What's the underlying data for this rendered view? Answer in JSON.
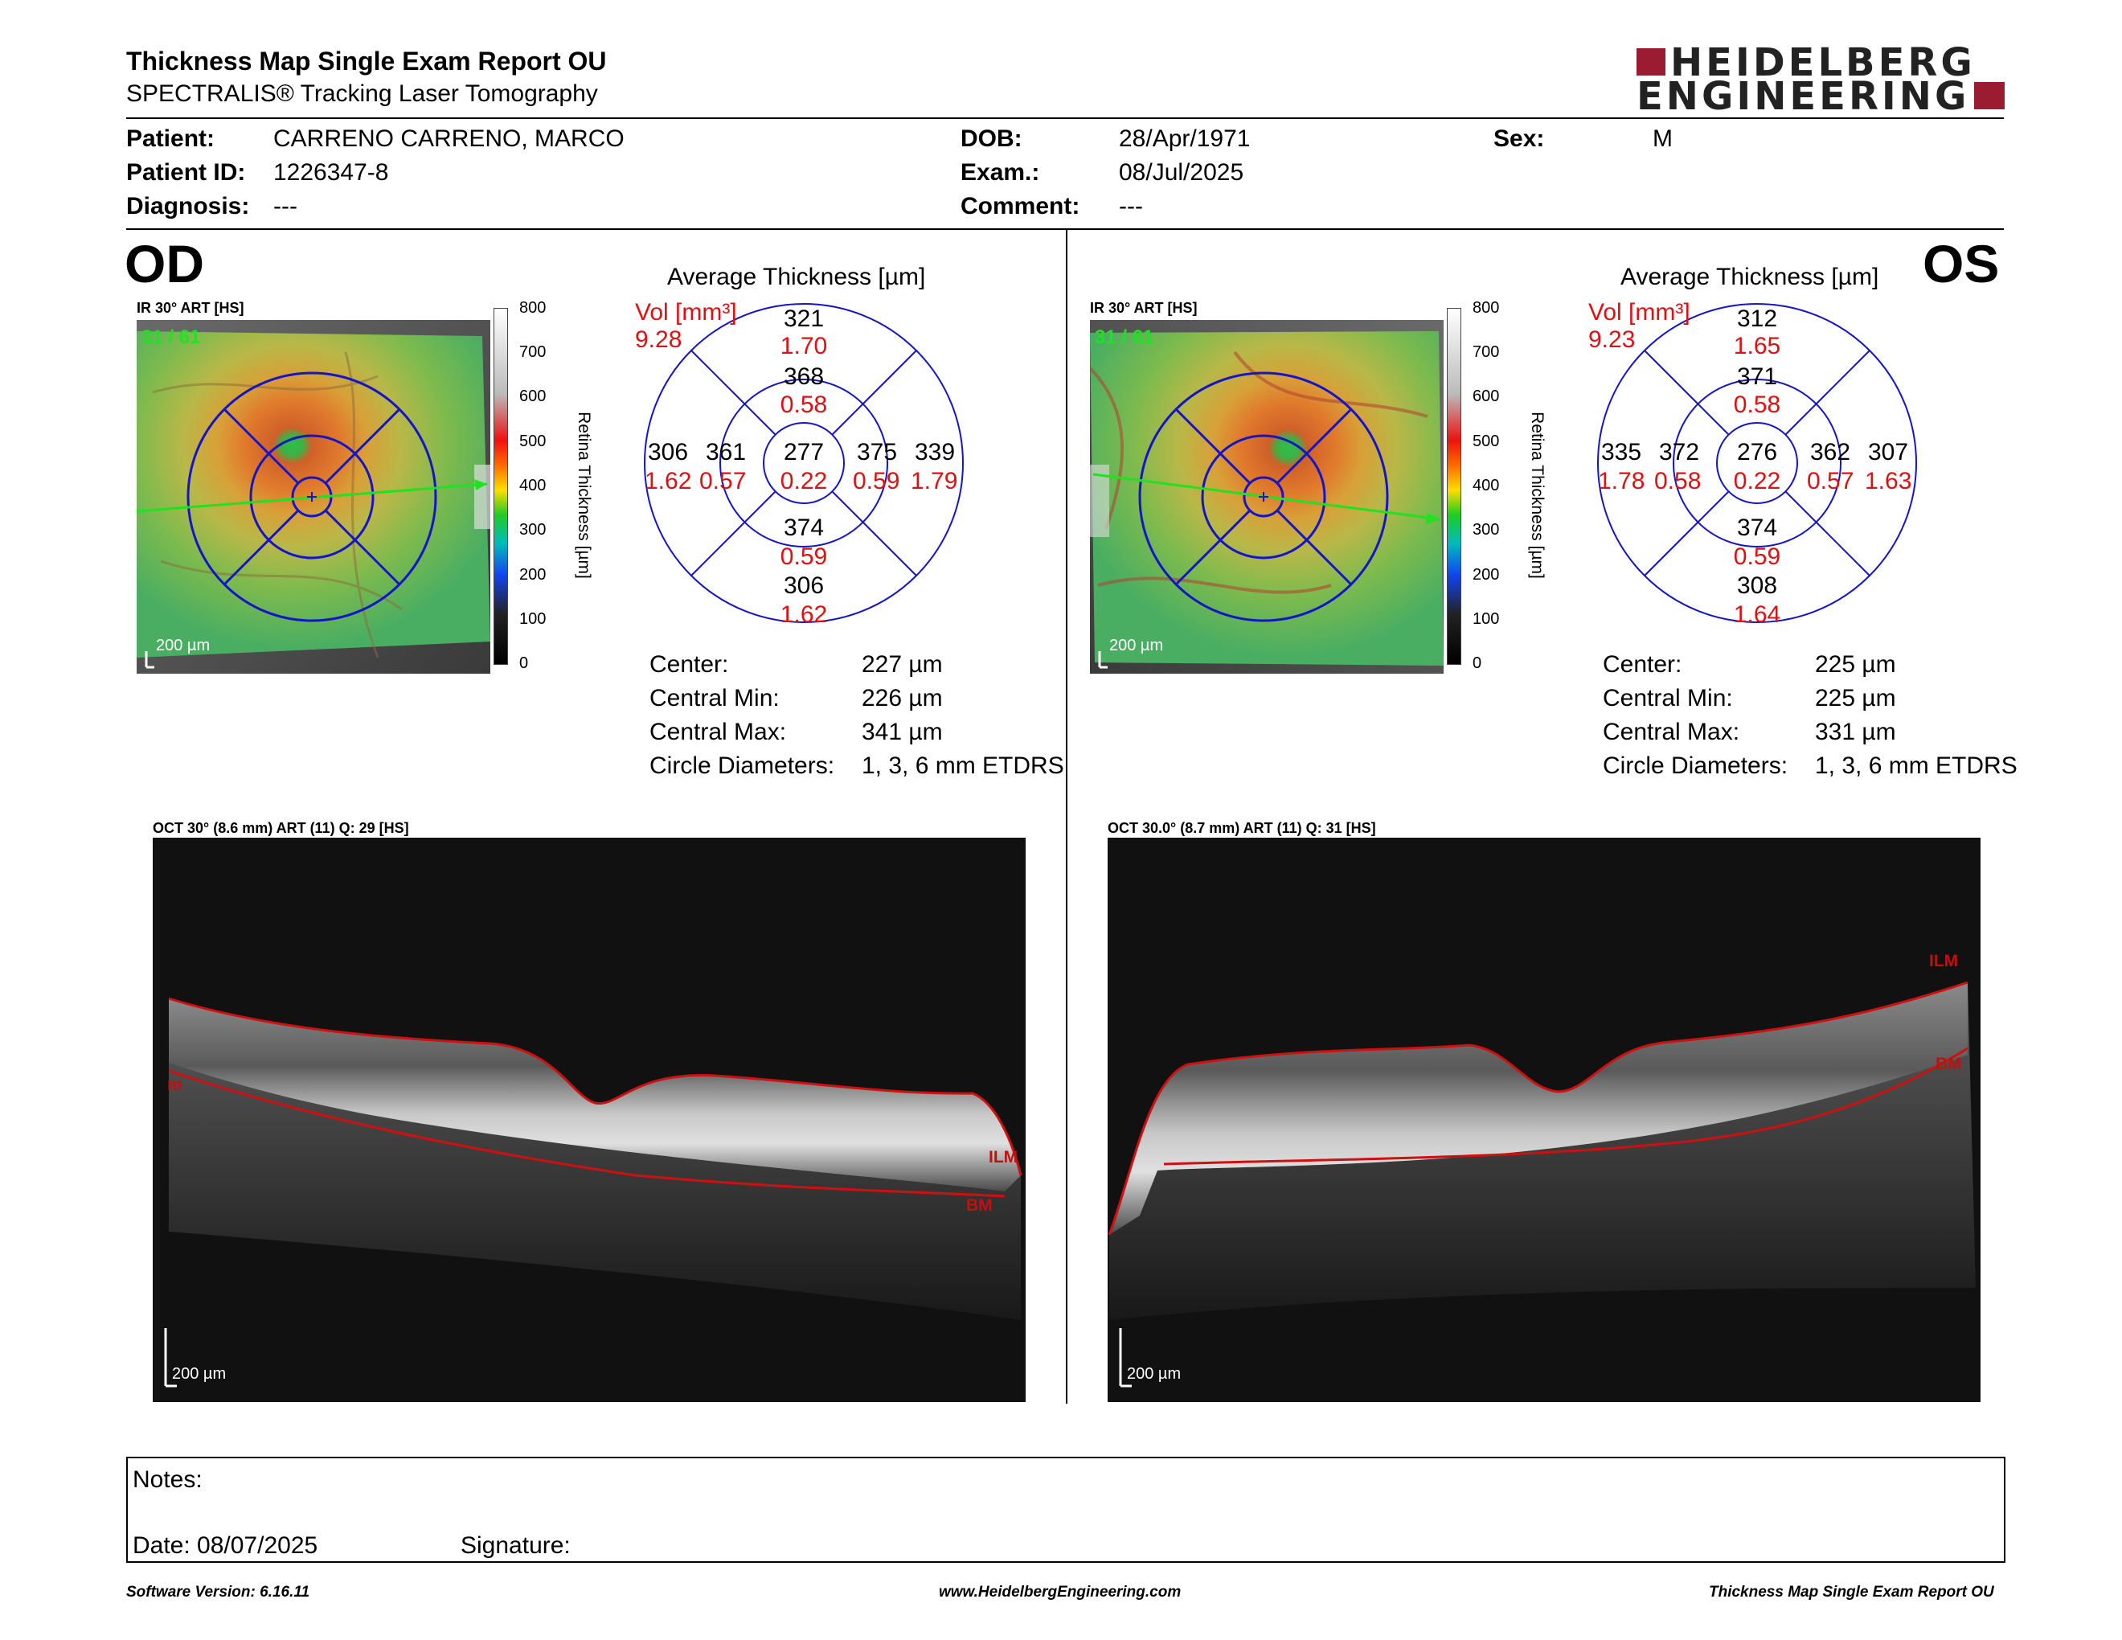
{
  "header": {
    "title": "Thickness Map Single Exam Report OU",
    "subtitle": "SPECTRALIS® Tracking Laser Tomography",
    "logo_line1": "HEIDELBERG",
    "logo_line2": "ENGINEERING"
  },
  "patient": {
    "patient_label": "Patient:",
    "patient_value": "CARRENO CARRENO, MARCO",
    "id_label": "Patient ID:",
    "id_value": "1226347-8",
    "diagnosis_label": "Diagnosis:",
    "diagnosis_value": "---",
    "dob_label": "DOB:",
    "dob_value": "28/Apr/1971",
    "exam_label": "Exam.:",
    "exam_value": "08/Jul/2025",
    "comment_label": "Comment:",
    "comment_value": "---",
    "sex_label": "Sex:",
    "sex_value": "M"
  },
  "colorbar": {
    "ticks": [
      "800",
      "700",
      "600",
      "500",
      "400",
      "300",
      "200",
      "100",
      "0"
    ],
    "label": "Retina Thickness [µm]"
  },
  "od": {
    "eye": "OD",
    "ir_label": "IR 30° ART [HS]",
    "frame": "31 / 61",
    "scale": "200 µm",
    "avg_title": "Average Thickness [µm]",
    "vol_label": "Vol [mm³]",
    "vol_value": "9.28",
    "sectors": {
      "outer_top": {
        "t": "321",
        "v": "1.70"
      },
      "inner_top": {
        "t": "368",
        "v": "0.58"
      },
      "outer_left": {
        "t": "306",
        "v": "1.62"
      },
      "inner_left": {
        "t": "361",
        "v": "0.57"
      },
      "center": {
        "t": "277",
        "v": "0.22"
      },
      "inner_right": {
        "t": "375",
        "v": "0.59"
      },
      "outer_right": {
        "t": "339",
        "v": "1.79"
      },
      "inner_bottom": {
        "t": "374",
        "v": "0.59"
      },
      "outer_bottom": {
        "t": "306",
        "v": "1.62"
      }
    },
    "stats": {
      "center_label": "Center:",
      "center_value": "227 µm",
      "min_label": "Central Min:",
      "min_value": "226 µm",
      "max_label": "Central Max:",
      "max_value": "341 µm",
      "diam_label": "Circle Diameters:",
      "diam_value": "1, 3, 6 mm ETDRS"
    },
    "oct_label": "OCT 30° (8.6 mm) ART (11) Q: 29 [HS]",
    "oct_scale": "200 µm",
    "ilm": "ILM",
    "bm": "BM",
    "edge_mark": "m"
  },
  "os": {
    "eye": "OS",
    "ir_label": "IR 30° ART [HS]",
    "frame": "31 / 61",
    "scale": "200 µm",
    "avg_title": "Average Thickness [µm]",
    "vol_label": "Vol [mm³]",
    "vol_value": "9.23",
    "sectors": {
      "outer_top": {
        "t": "312",
        "v": "1.65"
      },
      "inner_top": {
        "t": "371",
        "v": "0.58"
      },
      "outer_left": {
        "t": "335",
        "v": "1.78"
      },
      "inner_left": {
        "t": "372",
        "v": "0.58"
      },
      "center": {
        "t": "276",
        "v": "0.22"
      },
      "inner_right": {
        "t": "362",
        "v": "0.57"
      },
      "outer_right": {
        "t": "307",
        "v": "1.63"
      },
      "inner_bottom": {
        "t": "374",
        "v": "0.59"
      },
      "outer_bottom": {
        "t": "308",
        "v": "1.64"
      }
    },
    "stats": {
      "center_label": "Center:",
      "center_value": "225 µm",
      "min_label": "Central Min:",
      "min_value": "225 µm",
      "max_label": "Central Max:",
      "max_value": "331 µm",
      "diam_label": "Circle Diameters:",
      "diam_value": "1, 3, 6 mm ETDRS"
    },
    "oct_label": "OCT 30.0° (8.7 mm) ART (11) Q: 31 [HS]",
    "oct_scale": "200 µm",
    "ilm": "ILM",
    "bm": "BM"
  },
  "notes": {
    "notes_label": "Notes:",
    "date_label": "Date: 08/07/2025",
    "signature_label": "Signature:"
  },
  "footer": {
    "software": "Software Version: 6.16.11",
    "website": "www.HeidelbergEngineering.com",
    "report": "Thickness Map Single Exam Report OU"
  }
}
